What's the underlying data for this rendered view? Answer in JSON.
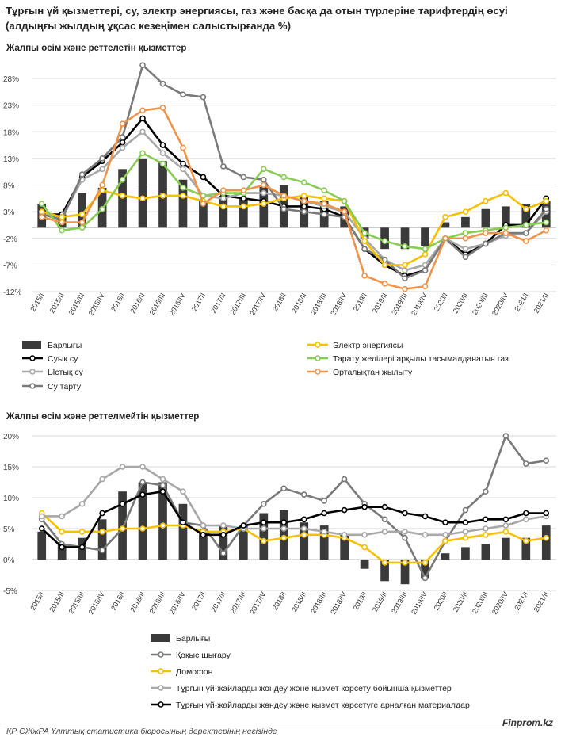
{
  "title": "Тұрғын үй қызметтері, су, электр энергиясы, газ және басқа да отын түрлеріне тарифтердің өсуі (алдыңғы жылдың ұқсас кезеңімен салыстырғанда %)",
  "footer": {
    "source": "ҚР СЖжРА Ұлттық статистика бюросының деректерінің негізінде",
    "brand": "Finprom.kz"
  },
  "colors": {
    "bars": "#3a3a3a",
    "black": "#000000",
    "lightgray": "#a8a8a8",
    "darkgray": "#7a7a7a",
    "yellow": "#f5c000",
    "orange": "#f0934a",
    "green": "#88cc55"
  },
  "chart_data": [
    {
      "type": "bar+line",
      "subtitle": "Жалпы өсім және реттелетін қызметтер",
      "categories": [
        "2015/I",
        "2015/II",
        "2015/III",
        "2015/IV",
        "2016/I",
        "2016/II",
        "2016/III",
        "2016/IV",
        "2017/I",
        "2017/II",
        "2017/III",
        "2017/IV",
        "2018/I",
        "2018/II",
        "2018/III",
        "2018/IV",
        "2019/I",
        "2019/II",
        "2019/III",
        "2019/IV",
        "2020/I",
        "2020/II",
        "2020/III",
        "2020/IV",
        "2021/I",
        "2021/II"
      ],
      "ylim": [
        -12,
        31
      ],
      "yticks": [
        28,
        23,
        18,
        13,
        8,
        3,
        -2,
        -7,
        -12
      ],
      "ytick_labels": [
        "28%",
        "23%",
        "18%",
        "13%",
        "8%",
        "3%",
        "-2%",
        "-7%",
        "-12%"
      ],
      "grid": true,
      "legend_position": "bottom",
      "bar_series": {
        "name": "Барлығы",
        "values": [
          4.5,
          2.5,
          6.5,
          7.5,
          11,
          13,
          12.5,
          9,
          5,
          6,
          5.5,
          8,
          8,
          6,
          5,
          4,
          -2,
          -4,
          -4,
          -3.5,
          1,
          2,
          3.5,
          4,
          4.5,
          5
        ]
      },
      "series": [
        {
          "name": "Суық су",
          "color_key": "black",
          "values": [
            2.5,
            2.5,
            9.5,
            12.5,
            16,
            20.5,
            15.5,
            12,
            9.5,
            6,
            5.5,
            5,
            4,
            4,
            3.5,
            2,
            -4,
            -7,
            -9,
            -8,
            -2,
            -5,
            -3,
            0.5,
            0.5,
            5.5
          ]
        },
        {
          "name": "Ыстық су",
          "color_key": "lightgray",
          "values": [
            2.5,
            2,
            9,
            11,
            15,
            18,
            14,
            11,
            6,
            5.5,
            6.5,
            6.5,
            6,
            5,
            4,
            3,
            -2,
            -6,
            -8,
            -7,
            -2,
            -4,
            -3,
            -1.5,
            -1,
            3
          ]
        },
        {
          "name": "Су тарту",
          "color_key": "darkgray",
          "values": [
            2.5,
            1.5,
            10,
            13,
            17,
            30.5,
            27,
            25,
            24.5,
            11.5,
            9.5,
            9,
            3.5,
            3,
            2.5,
            2,
            -4,
            -6,
            -9.5,
            -8,
            -2,
            -5.5,
            -3,
            -1,
            -1,
            3.5
          ]
        },
        {
          "name": "Электр энергиясы",
          "color_key": "yellow",
          "values": [
            3,
            2,
            2.5,
            7,
            6,
            5.5,
            6,
            6,
            5,
            4,
            4,
            4.5,
            5.5,
            6,
            5.5,
            5,
            -2.5,
            -7,
            -7,
            -5,
            2,
            3,
            5,
            6.5,
            3.5,
            5
          ]
        },
        {
          "name": "Тарату желілері арқылы тасымалданатын газ",
          "color_key": "green",
          "values": [
            4.5,
            -0.5,
            0,
            3.5,
            9,
            14,
            12,
            7.5,
            6,
            6.5,
            6.5,
            11,
            9.5,
            8.5,
            7,
            5,
            -1,
            -2.5,
            -3.5,
            -4,
            -2,
            -1,
            -0.5,
            0,
            0.5,
            1
          ]
        },
        {
          "name": "Орталықтан жылыту",
          "color_key": "orange",
          "values": [
            2,
            1,
            1,
            8,
            19.5,
            22,
            22.5,
            15,
            4.5,
            7,
            7,
            8,
            6,
            5,
            4.5,
            3,
            -9,
            -10.5,
            -11.5,
            -11,
            -2,
            -2,
            -1,
            -1,
            -2.5,
            -0.5
          ]
        }
      ]
    },
    {
      "type": "bar+line",
      "subtitle": "Жалпы өсім және реттелмейтін қызметтер",
      "categories": [
        "2015/I",
        "2015/II",
        "2015/III",
        "2015/IV",
        "2016/I",
        "2016/II",
        "2016/III",
        "2016/IV",
        "2017/I",
        "2017/II",
        "2017/III",
        "2017/IV",
        "2018/I",
        "2018/II",
        "2018/III",
        "2018/IV",
        "2019/I",
        "2019/II",
        "2019/III",
        "2019/IV",
        "2020/I",
        "2020/II",
        "2020/III",
        "2020/IV",
        "2021/I",
        "2021/II"
      ],
      "ylim": [
        -5,
        21
      ],
      "yticks": [
        20,
        15,
        10,
        5,
        0,
        -5
      ],
      "ytick_labels": [
        "20%",
        "15%",
        "10%",
        "5%",
        "0%",
        "-5%"
      ],
      "grid": true,
      "legend_position": "bottom",
      "bar_series": {
        "name": "Барлығы",
        "values": [
          4.5,
          2.5,
          3.5,
          6.5,
          11,
          12.5,
          12.5,
          9,
          5,
          5.5,
          5.5,
          7.5,
          8,
          6,
          5.5,
          4,
          -1.5,
          -3.5,
          -4,
          -3,
          1,
          2,
          2.5,
          3.5,
          3.5,
          5.5
        ]
      },
      "series": [
        {
          "name": "Қоқыс шығару",
          "color_key": "darkgray",
          "values": [
            6.5,
            2.5,
            2,
            1.5,
            5,
            12.5,
            12,
            6,
            5.5,
            1,
            5.5,
            9,
            11.5,
            10.5,
            9.5,
            13,
            9,
            6.5,
            3.5,
            -3,
            3,
            8,
            11,
            20,
            15.5,
            16
          ]
        },
        {
          "name": "Домофон",
          "color_key": "yellow",
          "values": [
            7.5,
            4.5,
            4.5,
            4.5,
            5,
            5,
            5.5,
            5.5,
            4.5,
            4.5,
            5,
            3,
            3.5,
            4,
            4,
            3.5,
            2,
            -0.5,
            -0.5,
            -0.5,
            3,
            3.5,
            4,
            4.5,
            3,
            3.5
          ]
        },
        {
          "name": "Тұрғын үй-жайларды жөндеу және қызмет көрсету бойынша қызметтер",
          "color_key": "lightgray",
          "values": [
            7,
            7,
            9,
            13,
            15,
            15,
            13,
            11,
            5.5,
            5.5,
            5,
            5,
            5,
            5,
            4.5,
            4,
            4,
            4.5,
            4.5,
            4,
            4,
            4.5,
            5,
            5.5,
            6.5,
            7
          ]
        },
        {
          "name": "Тұрғын үй-жайларды жөндеу және қызмет көрсетуге арналған материалдар",
          "color_key": "black",
          "values": [
            5,
            2,
            2,
            7.5,
            9,
            10.5,
            11,
            6,
            4,
            4,
            5.5,
            6,
            6,
            6.5,
            7.5,
            8,
            8.5,
            8.5,
            7.5,
            7,
            6,
            6,
            6.5,
            6.5,
            7.5,
            7.5
          ]
        }
      ]
    }
  ]
}
